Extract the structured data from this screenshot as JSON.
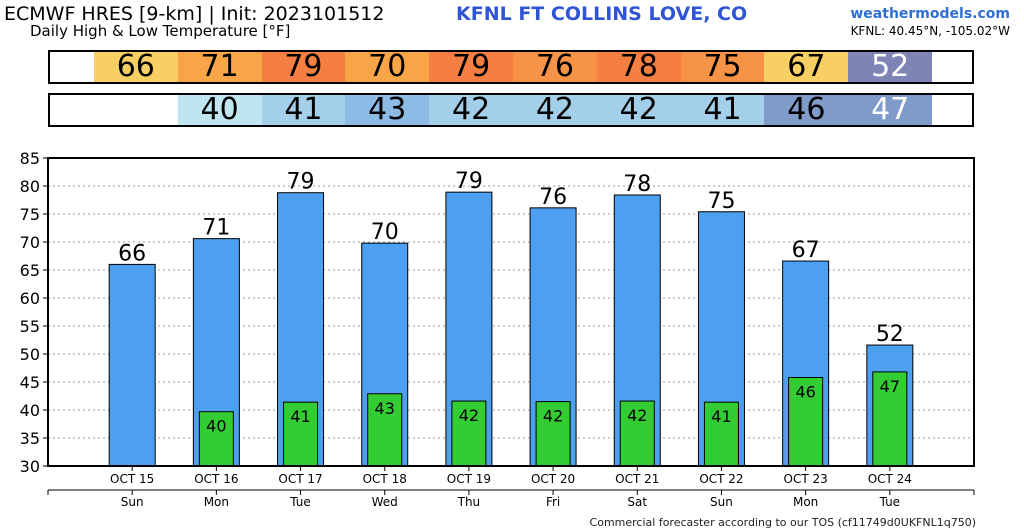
{
  "header": {
    "title": "ECMWF HRES [9-km] | Init: 2023101512",
    "station": "KFNL FT COLLINS LOVE, CO",
    "subtitle": "Daily High & Low Temperature [°F]",
    "brand": "weathermodels.com",
    "coords": "KFNL: 40.45°N, -105.02°W"
  },
  "strips": {
    "high": [
      {
        "label": "66",
        "color": "#f8cf62",
        "text_color": "#000000"
      },
      {
        "label": "71",
        "color": "#f8a547",
        "text_color": "#000000"
      },
      {
        "label": "79",
        "color": "#f57f42",
        "text_color": "#000000"
      },
      {
        "label": "70",
        "color": "#f8a547",
        "text_color": "#000000"
      },
      {
        "label": "79",
        "color": "#f57f42",
        "text_color": "#000000"
      },
      {
        "label": "76",
        "color": "#f79346",
        "text_color": "#000000"
      },
      {
        "label": "78",
        "color": "#f57f42",
        "text_color": "#000000"
      },
      {
        "label": "75",
        "color": "#f79346",
        "text_color": "#000000"
      },
      {
        "label": "67",
        "color": "#f8cf62",
        "text_color": "#000000"
      },
      {
        "label": "52",
        "color": "#7f84b7",
        "text_color": "#ffffff"
      }
    ],
    "low": [
      {
        "label": "",
        "color": "#ffffff",
        "text_color": "#000000"
      },
      {
        "label": "40",
        "color": "#bfe6f0",
        "text_color": "#000000"
      },
      {
        "label": "41",
        "color": "#a3cfea",
        "text_color": "#000000"
      },
      {
        "label": "43",
        "color": "#8cbce5",
        "text_color": "#000000"
      },
      {
        "label": "42",
        "color": "#a3cfea",
        "text_color": "#000000"
      },
      {
        "label": "42",
        "color": "#a3cfea",
        "text_color": "#000000"
      },
      {
        "label": "42",
        "color": "#a3cfea",
        "text_color": "#000000"
      },
      {
        "label": "41",
        "color": "#a3cfea",
        "text_color": "#000000"
      },
      {
        "label": "46",
        "color": "#7f9bc9",
        "text_color": "#000000"
      },
      {
        "label": "47",
        "color": "#7f9bc9",
        "text_color": "#ffffff"
      }
    ]
  },
  "chart_data": {
    "type": "bar",
    "categories": [
      "OCT 15",
      "OCT 16",
      "OCT 17",
      "OCT 18",
      "OCT 19",
      "OCT 20",
      "OCT 21",
      "OCT 22",
      "OCT 23",
      "OCT 24"
    ],
    "weekdays": [
      "Sun",
      "Mon",
      "Tue",
      "Wed",
      "Thu",
      "Fri",
      "Sat",
      "Sun",
      "Mon",
      "Tue"
    ],
    "series": [
      {
        "values": [
          66,
          70.6,
          78.8,
          69.8,
          78.9,
          76.1,
          78.4,
          75.4,
          66.6,
          51.6
        ],
        "labels": [
          "66",
          "71",
          "79",
          "70",
          "79",
          "76",
          "78",
          "75",
          "67",
          "52"
        ],
        "color": "#4d9ff0"
      },
      {
        "values": [
          null,
          39.7,
          41.4,
          42.9,
          41.6,
          41.5,
          41.6,
          41.4,
          45.8,
          46.8
        ],
        "labels": [
          "",
          "40",
          "41",
          "43",
          "42",
          "42",
          "42",
          "41",
          "46",
          "47"
        ],
        "color": "#33cc33"
      }
    ],
    "y_ticks": [
      "30",
      "35",
      "40",
      "45",
      "50",
      "55",
      "60",
      "65",
      "70",
      "75",
      "80",
      "85"
    ],
    "ylim": [
      30,
      85
    ],
    "grid": true,
    "grid_color": "#9a9a9a"
  },
  "footer": "Commercial forecaster according to our TOS (cf11749d0UKFNL1q750)"
}
